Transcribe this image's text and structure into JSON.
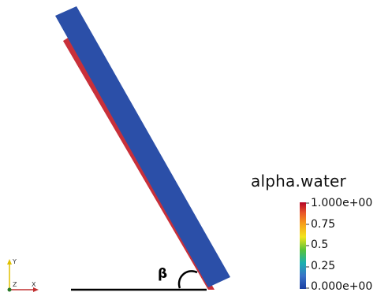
{
  "angle_label": "β",
  "legend": {
    "title": "alpha.water",
    "ticks": [
      "1.000e+00",
      "0.75",
      "0.5",
      "0.25",
      "0.000e+00"
    ],
    "range": [
      0,
      1
    ],
    "colormap": [
      "#b40426",
      "#e8542a",
      "#f7a01b",
      "#f2e41c",
      "#57c23a",
      "#1ab0b0",
      "#3a73c8",
      "#1b3fa0"
    ]
  },
  "axes": {
    "y": "Y",
    "z": "Z",
    "x": "X"
  },
  "colors": {
    "plate_main": "#2b4fa8",
    "plate_edge": "#c8303a",
    "ground_line": "#000000",
    "axis_y": "#e0c000",
    "axis_x": "#c03030",
    "axis_origin": "#2a7a2a"
  }
}
